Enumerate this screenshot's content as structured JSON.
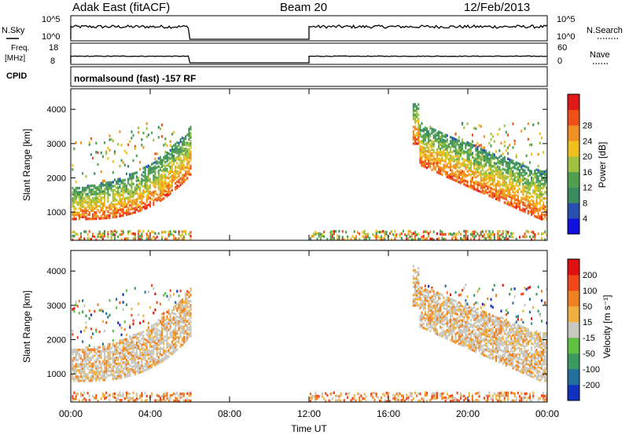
{
  "header": {
    "station": "Adak East (fitACF)",
    "beam": "Beam 20",
    "date": "12/Feb/2013"
  },
  "top_panels": {
    "nsky": {
      "label": "N.Sky",
      "ticks": [
        "10^5",
        "10^0"
      ]
    },
    "nsearch": {
      "label": "N.Search",
      "ticks": [
        "10^5",
        "10^0"
      ]
    },
    "freq": {
      "label_line1": "Freq.",
      "label_line2": "[MHz]",
      "ticks": [
        "18",
        "8"
      ]
    },
    "nave": {
      "label": "Nave",
      "ticks": [
        "60",
        "0"
      ]
    },
    "cpid": {
      "label": "CPID",
      "text": "normalsound (fast) -157 RF"
    }
  },
  "colors": {
    "power": [
      "#1010e0",
      "#2850b0",
      "#3a8c60",
      "#50a050",
      "#a0c040",
      "#f0c020",
      "#f09020",
      "#f05018",
      "#e01818"
    ],
    "velocity": [
      "#1030c0",
      "#2070a0",
      "#3a9a60",
      "#60c040",
      "#c8c8c0",
      "#f0b040",
      "#f08020",
      "#f04818",
      "#e01010"
    ]
  },
  "chart_data": [
    {
      "type": "heatmap",
      "name": "power",
      "ylabel": "Slant Range [km]",
      "yticks": [
        "1000",
        "2000",
        "3000",
        "4000"
      ],
      "ylim": [
        180,
        4600
      ],
      "xlim": [
        0,
        24
      ],
      "xticks": [
        "00:00",
        "04:00",
        "08:00",
        "12:00",
        "16:00",
        "20:00",
        "00:00"
      ],
      "colorbar_label": "Power [dB]",
      "colorbar_ticks": [
        "4",
        "8",
        "12",
        "16",
        "20",
        "24",
        "28"
      ],
      "data_gap": [
        6,
        12
      ]
    },
    {
      "type": "heatmap",
      "name": "velocity",
      "ylabel": "Slant Range [km]",
      "yticks": [
        "1000",
        "2000",
        "3000",
        "4000"
      ],
      "ylim": [
        180,
        4600
      ],
      "xlim": [
        0,
        24
      ],
      "xticks": [
        "00:00",
        "04:00",
        "08:00",
        "12:00",
        "16:00",
        "20:00",
        "00:00"
      ],
      "xlabel": "Time UT",
      "colorbar_label": "Velocity [m s⁻¹]",
      "colorbar_ticks": [
        "200",
        "100",
        "50",
        "15",
        "-15",
        "-50",
        "-100",
        "-200"
      ],
      "data_gap": [
        6,
        12
      ]
    }
  ]
}
